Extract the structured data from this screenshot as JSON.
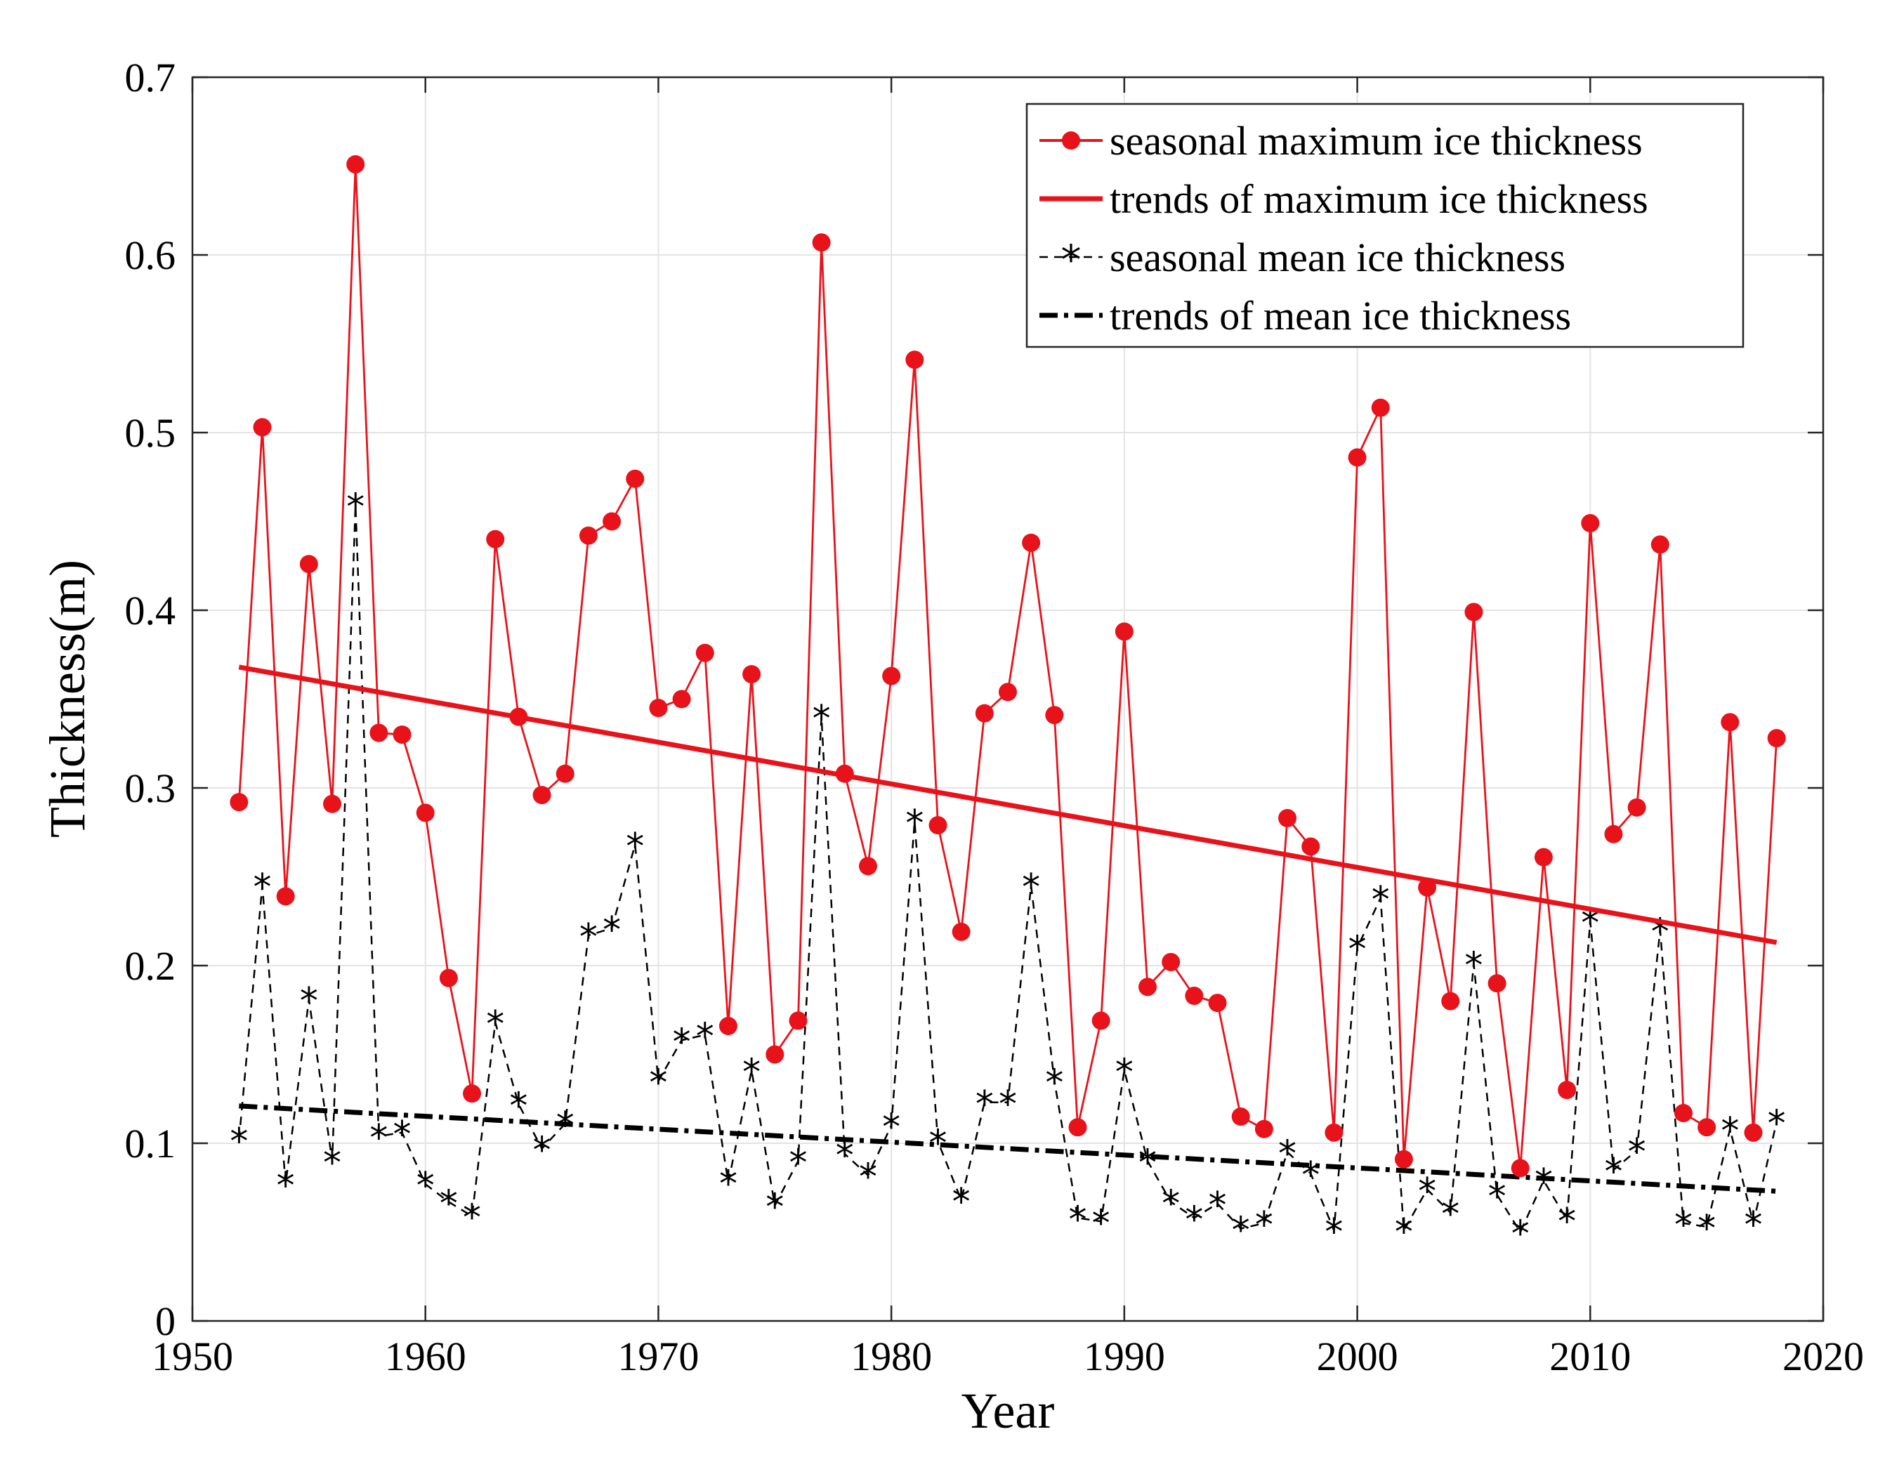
{
  "chart_data": {
    "type": "line",
    "xlabel": "Year",
    "ylabel": "Thickness(m)",
    "xlim": [
      1950,
      2020
    ],
    "ylim": [
      0,
      0.7
    ],
    "xticks": [
      1950,
      1960,
      1970,
      1980,
      1990,
      2000,
      2010,
      2020
    ],
    "yticks": [
      0,
      0.1,
      0.2,
      0.3,
      0.4,
      0.5,
      0.6,
      0.7
    ],
    "ytick_labels": [
      "0",
      "0.1",
      "0.2",
      "0.3",
      "0.4",
      "0.5",
      "0.6",
      "0.7"
    ],
    "grid": true,
    "legend_position": "top-right",
    "x": [
      1952,
      1953,
      1954,
      1955,
      1956,
      1957,
      1958,
      1959,
      1960,
      1961,
      1962,
      1963,
      1964,
      1965,
      1966,
      1967,
      1968,
      1969,
      1970,
      1971,
      1972,
      1973,
      1974,
      1975,
      1976,
      1977,
      1978,
      1979,
      1980,
      1981,
      1982,
      1983,
      1984,
      1985,
      1986,
      1987,
      1988,
      1989,
      1990,
      1991,
      1992,
      1993,
      1994,
      1995,
      1996,
      1997,
      1998,
      1999,
      2000,
      2001,
      2002,
      2003,
      2004,
      2005,
      2006,
      2007,
      2008,
      2009,
      2010,
      2011,
      2012,
      2013,
      2014,
      2015,
      2016,
      2017,
      2018
    ],
    "series": [
      {
        "name": "seasonal maximum ice thickness",
        "color": "#e8121a",
        "style": "solid-with-circles",
        "values": [
          0.292,
          0.503,
          0.239,
          0.426,
          0.291,
          0.651,
          0.331,
          0.33,
          0.286,
          0.193,
          0.128,
          0.44,
          0.34,
          0.296,
          0.308,
          0.442,
          0.45,
          0.474,
          0.345,
          0.35,
          0.376,
          0.166,
          0.364,
          0.15,
          0.169,
          0.607,
          0.308,
          0.256,
          0.363,
          0.541,
          0.279,
          0.219,
          0.342,
          0.354,
          0.438,
          0.341,
          0.109,
          0.169,
          0.388,
          0.188,
          0.202,
          0.183,
          0.179,
          0.115,
          0.108,
          0.283,
          0.267,
          0.106,
          0.486,
          0.514,
          0.091,
          0.244,
          0.18,
          0.399,
          0.19,
          0.086,
          0.261,
          0.13,
          0.449,
          0.274,
          0.289,
          0.437,
          0.117,
          0.109,
          0.337,
          0.106,
          0.328
        ]
      },
      {
        "name": "trends of maximum ice thickness",
        "color": "#e8121a",
        "style": "solid-thick",
        "x": [
          1952,
          2018
        ],
        "values": [
          0.368,
          0.213
        ]
      },
      {
        "name": "seasonal mean ice thickness",
        "color": "#000000",
        "style": "dashed-with-asterisks",
        "values": [
          0.102,
          0.245,
          0.077,
          0.181,
          0.09,
          0.459,
          0.104,
          0.106,
          0.077,
          0.067,
          0.059,
          0.168,
          0.122,
          0.097,
          0.111,
          0.217,
          0.221,
          0.268,
          0.135,
          0.158,
          0.161,
          0.078,
          0.141,
          0.065,
          0.09,
          0.34,
          0.094,
          0.082,
          0.11,
          0.281,
          0.101,
          0.068,
          0.123,
          0.123,
          0.245,
          0.135,
          0.058,
          0.056,
          0.141,
          0.09,
          0.067,
          0.058,
          0.066,
          0.052,
          0.055,
          0.095,
          0.083,
          0.051,
          0.21,
          0.238,
          0.051,
          0.074,
          0.061,
          0.201,
          0.071,
          0.05,
          0.079,
          0.057,
          0.225,
          0.085,
          0.096,
          0.22,
          0.055,
          0.053,
          0.108,
          0.055,
          0.112
        ]
      },
      {
        "name": "trends of mean ice thickness",
        "color": "#000000",
        "style": "dash-dot-thick",
        "x": [
          1952,
          2018
        ],
        "values": [
          0.121,
          0.073
        ]
      }
    ]
  }
}
